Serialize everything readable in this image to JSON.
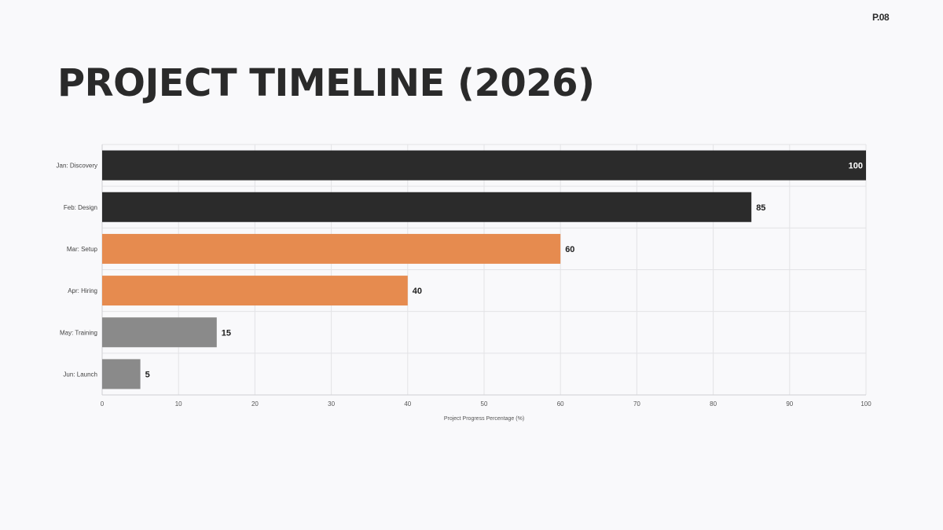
{
  "page": {
    "number": "P.08",
    "title": "PROJECT TIMELINE (2026)"
  },
  "chart_data": {
    "type": "bar",
    "orientation": "horizontal",
    "title": "",
    "xlabel": "Project Progress Percentage (%)",
    "ylabel": "",
    "categories": [
      "Jan: Discovery",
      "Feb: Design",
      "Mar: Setup",
      "Apr: Hiring",
      "May: Training",
      "Jun: Launch"
    ],
    "values": [
      100,
      85,
      60,
      40,
      15,
      5
    ],
    "value_labels": [
      "100",
      "85",
      "60",
      "40",
      "15",
      "5"
    ],
    "bar_colors": [
      "#2b2b2b",
      "#2b2b2b",
      "#e68b4f",
      "#e68b4f",
      "#8a8a8a",
      "#8a8a8a"
    ],
    "xlim": [
      0,
      100
    ],
    "x_ticks": [
      "0",
      "10",
      "20",
      "30",
      "40",
      "50",
      "60",
      "70",
      "80",
      "90",
      "100"
    ],
    "grid": true,
    "legend": "none",
    "colors": {
      "grid": "#e3e3e6",
      "axis": "#cfcfd3",
      "label_outside": "#1f1f1f",
      "label_inside": "#ffffff"
    }
  }
}
